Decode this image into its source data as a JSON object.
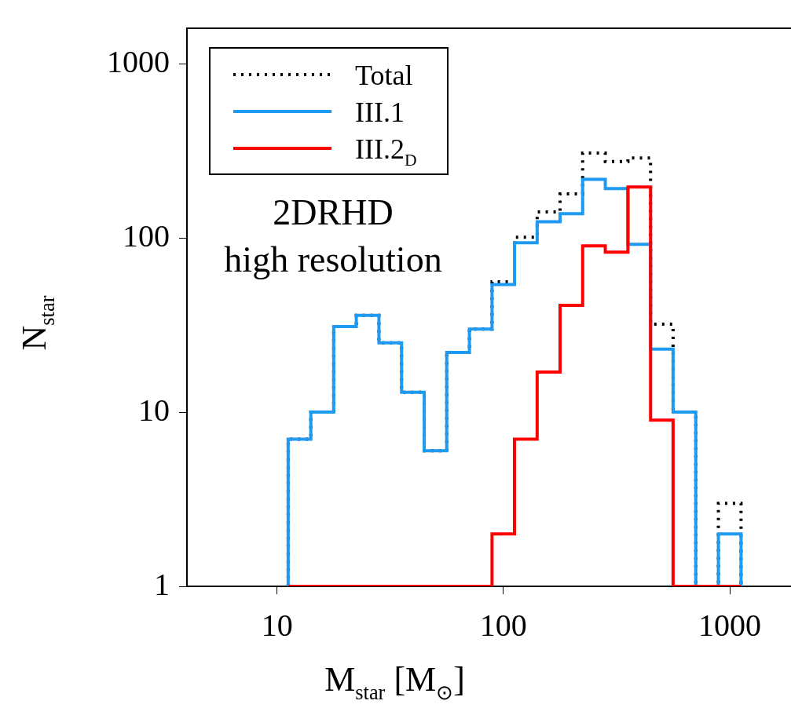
{
  "chart_data": {
    "type": "histogram",
    "xlabel": "M$_{star}$ [M$_{⊙}$]",
    "ylabel": "N$_{star}$",
    "annotations": [
      "2DRHD",
      "high resolution"
    ],
    "bins": [
      11.2,
      14.1,
      17.8,
      22.4,
      28.2,
      35.5,
      44.7,
      56.2,
      70.8,
      89.1,
      112,
      141,
      178,
      224,
      282,
      355,
      447,
      562,
      708,
      891,
      1122
    ],
    "series": [
      {
        "name": "Total",
        "color": "#000000",
        "line_style": "dotted",
        "values": [
          7,
          10,
          31,
          36,
          25,
          13,
          6,
          22,
          30,
          56,
          101,
          141,
          179,
          307,
          275,
          288,
          32,
          10,
          1,
          3
        ]
      },
      {
        "name": "III.1",
        "color": "#1e9af0",
        "values": [
          7,
          10,
          31,
          36,
          25,
          13,
          6,
          22,
          30,
          54,
          94,
          124,
          138,
          217,
          192,
          92,
          23,
          10,
          1,
          2
        ]
      },
      {
        "name": "III.2$_{D}$",
        "color": "#ff0000",
        "values": [
          1,
          1,
          1,
          1,
          1,
          1,
          1,
          1,
          1,
          2,
          7,
          17,
          41,
          90,
          83,
          196,
          9,
          1,
          1,
          1
        ]
      }
    ],
    "log": "xy",
    "xlim": [
      4,
      1865
    ],
    "xticks": [
      10,
      100,
      1000
    ],
    "ylim": [
      1,
      1600
    ],
    "yticks": [
      1,
      10,
      100,
      1000
    ],
    "legend": "top left",
    "grid": false
  }
}
